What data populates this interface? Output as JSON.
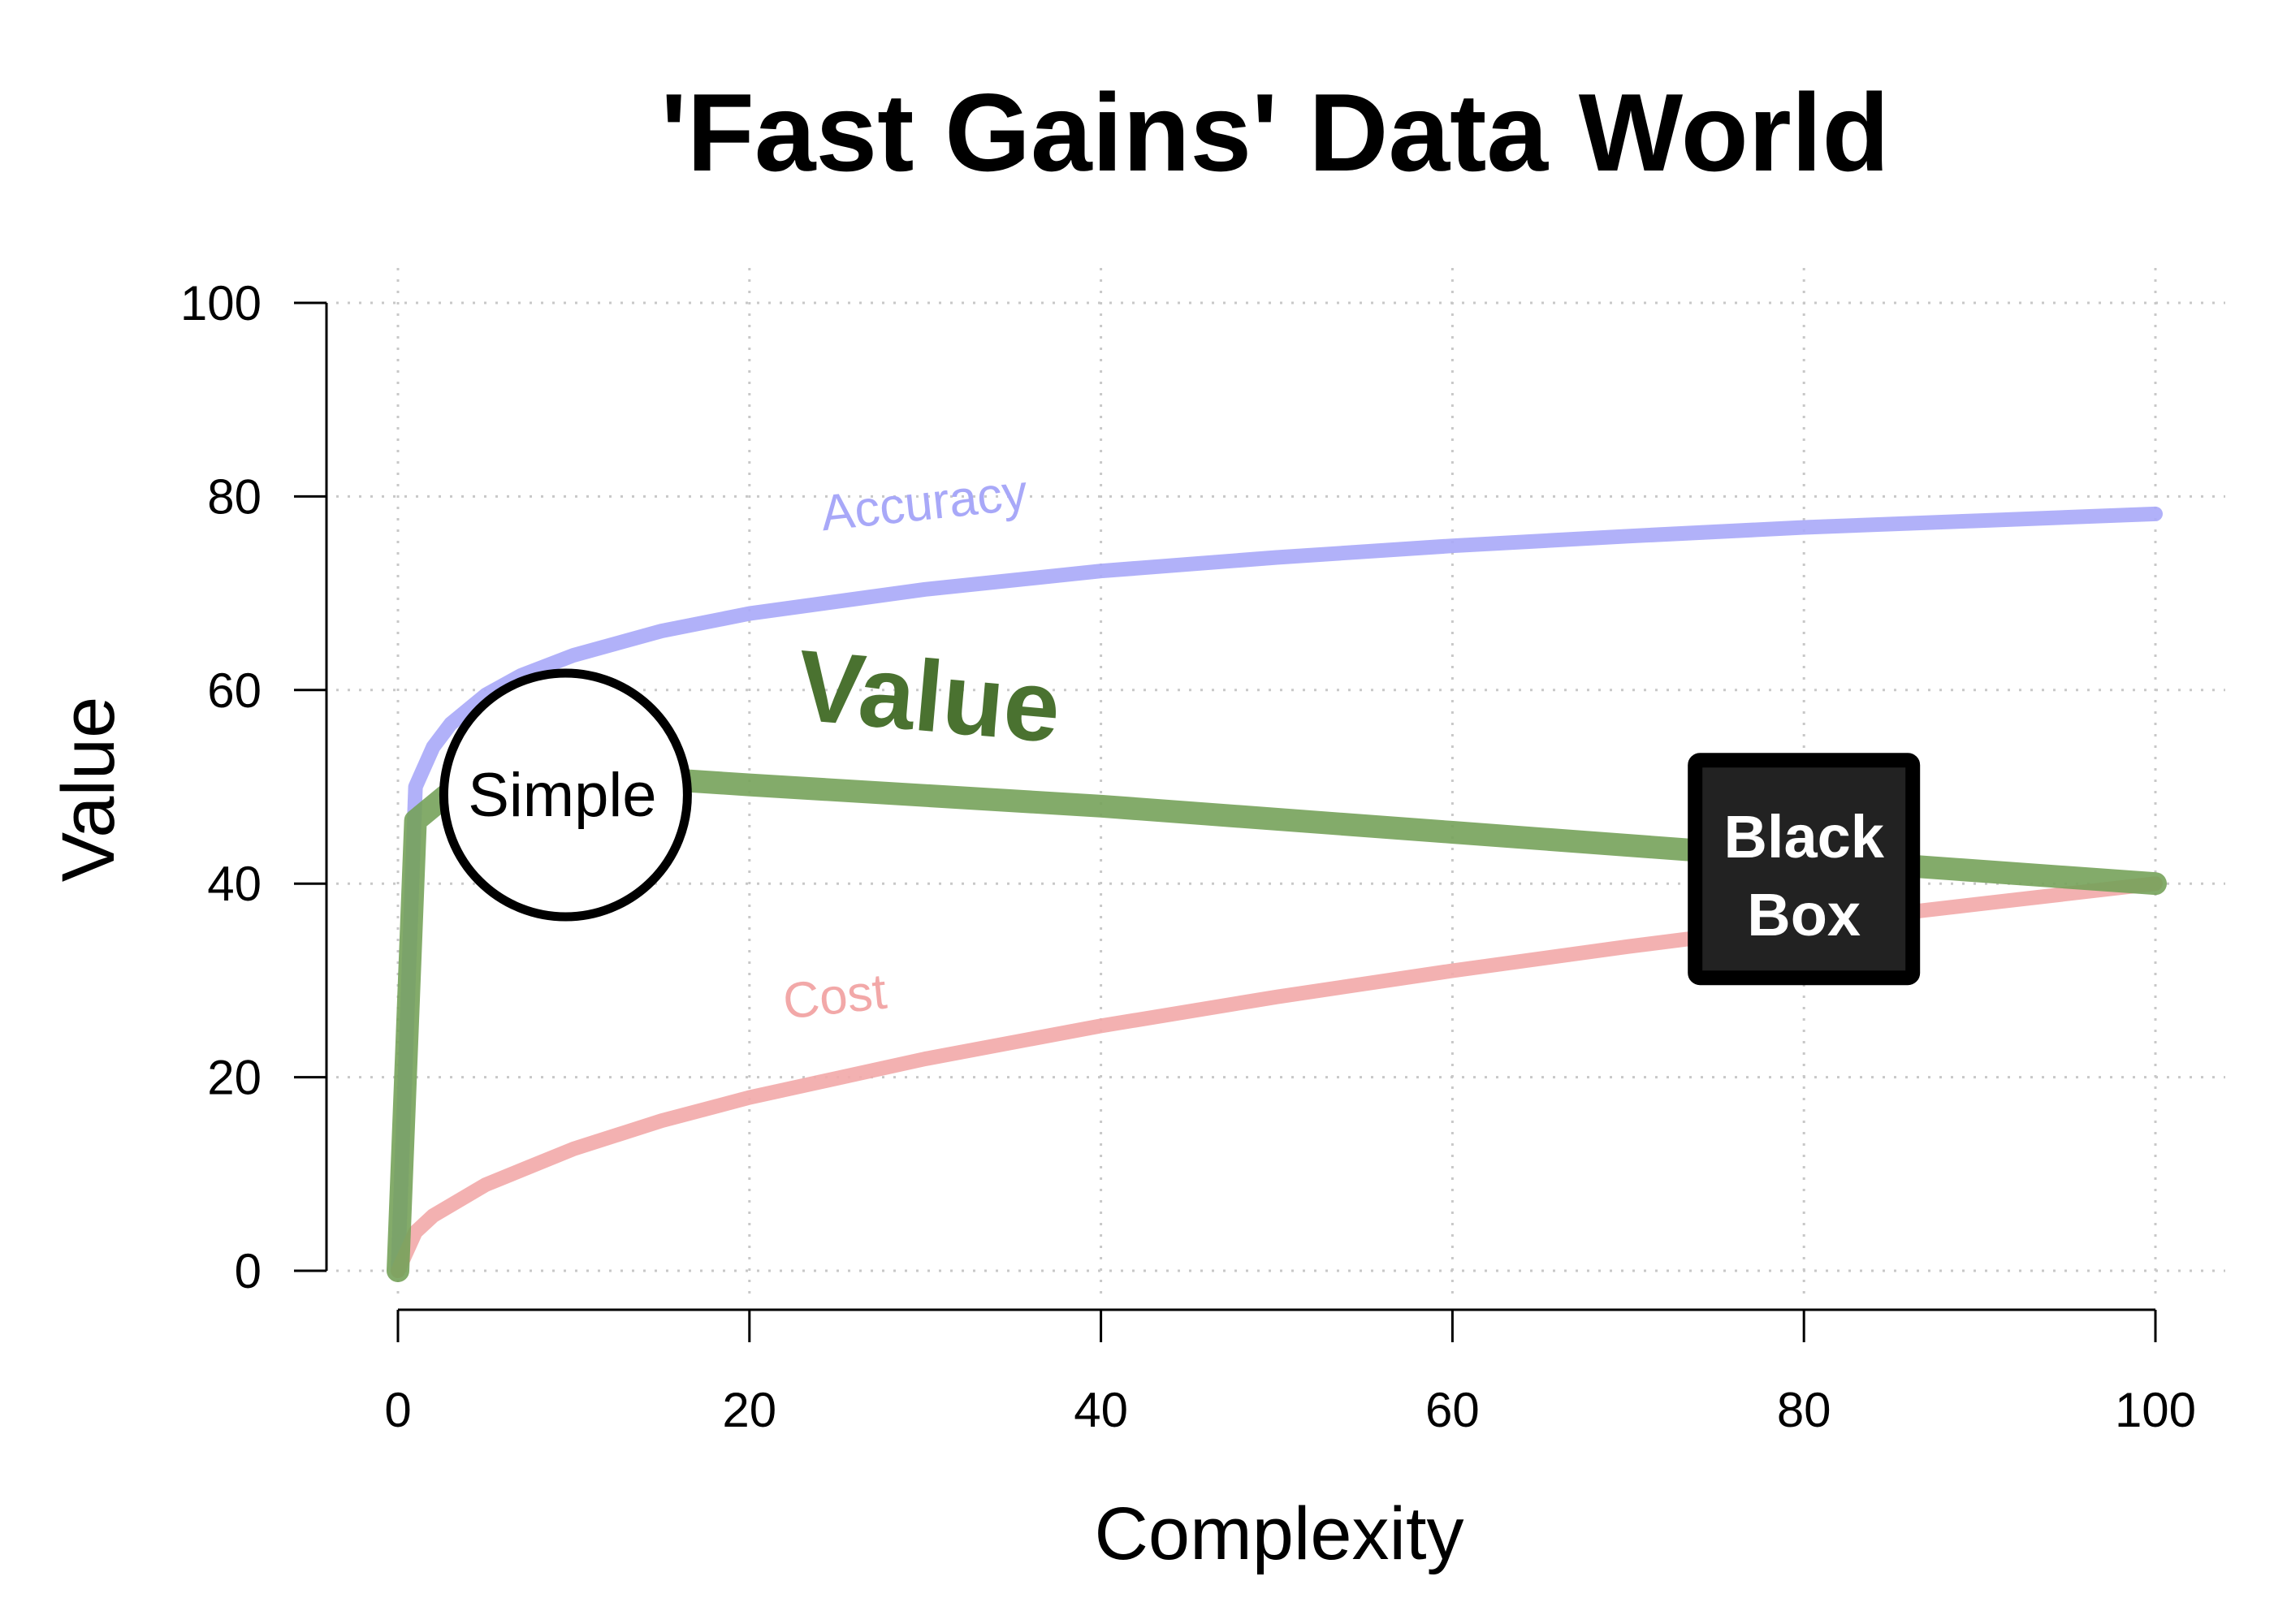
{
  "chart_data": {
    "type": "line",
    "title": "'Fast Gains' Data World",
    "xlabel": "Complexity",
    "ylabel": "Value",
    "xlim": [
      0,
      100
    ],
    "ylim": [
      0,
      100
    ],
    "xticks": [
      "0",
      "20",
      "40",
      "60",
      "80",
      "100"
    ],
    "yticks": [
      "0",
      "20",
      "40",
      "60",
      "80",
      "100"
    ],
    "grid": true,
    "series": [
      {
        "name": "Accuracy",
        "color": "#a8a8f8",
        "x": [
          0,
          1,
          2,
          3,
          5,
          7,
          10,
          15,
          20,
          30,
          40,
          50,
          60,
          70,
          80,
          90,
          100
        ],
        "values": [
          0,
          50,
          54.1,
          56.5,
          59.5,
          61.5,
          63.6,
          66.1,
          67.9,
          70.4,
          72.3,
          73.7,
          74.9,
          75.9,
          76.8,
          77.5,
          78.2
        ]
      },
      {
        "name": "Value",
        "color": "#76a25a",
        "x": [
          0,
          1,
          3,
          5,
          10,
          15,
          20,
          40,
          60,
          80,
          100
        ],
        "values": [
          0,
          46.5,
          49.5,
          50.5,
          51,
          50.8,
          50.2,
          48,
          45.3,
          42.6,
          40
        ]
      },
      {
        "name": "Cost",
        "color": "#f2a8a8",
        "x": [
          0,
          1,
          2,
          5,
          10,
          15,
          20,
          30,
          40,
          50,
          60,
          70,
          80,
          90,
          100
        ],
        "values": [
          0,
          4,
          5.7,
          8.9,
          12.6,
          15.5,
          17.9,
          21.9,
          25.3,
          28.3,
          31,
          33.5,
          35.8,
          37.9,
          40
        ]
      }
    ],
    "annotations": [
      {
        "text": "Simple",
        "x": 10,
        "y": 50,
        "shape": "circle"
      },
      {
        "text_line1": "Black",
        "text_line2": "Box",
        "x": 80,
        "y": 40,
        "shape": "square"
      }
    ]
  }
}
